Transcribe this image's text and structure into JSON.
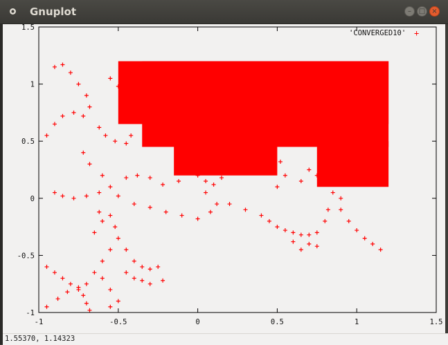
{
  "window": {
    "title": "Gnuplot"
  },
  "colors": {
    "series": "#ff0000",
    "titlebar": "#3c3b37",
    "canvas": "#f2f1f0"
  },
  "status": {
    "coords": "1.55370,  1.14323"
  },
  "chart_data": {
    "type": "scatter",
    "xlim": [
      -1,
      1.5
    ],
    "ylim": [
      -1,
      1.5
    ],
    "x_ticks": [
      "-1",
      "-0.5",
      "0",
      "0.5",
      "1",
      "1.5"
    ],
    "y_ticks": [
      "-1",
      "-0.5",
      "0",
      "0.5",
      "1",
      "1.5"
    ],
    "grid": false,
    "legend": "top-right",
    "series": [
      {
        "name": "'CONVERGED10'",
        "marker": "+",
        "color": "#ff0000",
        "regions": [
          {
            "shape": "rect",
            "x": [
              -0.35,
              1.2
            ],
            "y": [
              0.45,
              1.2
            ]
          },
          {
            "shape": "rect",
            "x": [
              -0.5,
              1.2
            ],
            "y": [
              0.65,
              1.2
            ]
          },
          {
            "shape": "rect",
            "x": [
              -0.15,
              0.5
            ],
            "y": [
              0.2,
              0.7
            ]
          },
          {
            "shape": "rect",
            "x": [
              0.75,
              1.2
            ],
            "y": [
              0.1,
              0.5
            ]
          }
        ],
        "points": [
          [
            -0.95,
            0.55
          ],
          [
            -0.9,
            0.65
          ],
          [
            -0.85,
            0.72
          ],
          [
            -0.78,
            0.75
          ],
          [
            -0.72,
            0.72
          ],
          [
            -0.8,
            1.1
          ],
          [
            -0.75,
            1.0
          ],
          [
            -0.7,
            0.9
          ],
          [
            -0.68,
            0.8
          ],
          [
            -0.85,
            1.17
          ],
          [
            -0.9,
            1.15
          ],
          [
            -0.55,
            1.05
          ],
          [
            -0.5,
            0.98
          ],
          [
            -0.45,
            0.92
          ],
          [
            -0.4,
            1.1
          ],
          [
            -0.35,
            1.12
          ],
          [
            -0.3,
            1.17
          ],
          [
            -0.62,
            0.62
          ],
          [
            -0.58,
            0.55
          ],
          [
            -0.52,
            0.5
          ],
          [
            -0.45,
            0.48
          ],
          [
            -0.42,
            0.55
          ],
          [
            -0.72,
            0.4
          ],
          [
            -0.68,
            0.3
          ],
          [
            -0.6,
            0.2
          ],
          [
            -0.55,
            0.1
          ],
          [
            -0.5,
            0.02
          ],
          [
            -0.9,
            0.05
          ],
          [
            -0.85,
            0.02
          ],
          [
            -0.78,
            0.0
          ],
          [
            -0.7,
            0.02
          ],
          [
            -0.62,
            0.05
          ],
          [
            -0.45,
            0.18
          ],
          [
            -0.38,
            0.2
          ],
          [
            -0.3,
            0.18
          ],
          [
            -0.22,
            0.12
          ],
          [
            -0.12,
            0.15
          ],
          [
            0.0,
            0.2
          ],
          [
            0.05,
            0.15
          ],
          [
            -0.4,
            -0.05
          ],
          [
            -0.3,
            -0.08
          ],
          [
            -0.2,
            -0.12
          ],
          [
            -0.1,
            -0.15
          ],
          [
            0.0,
            -0.18
          ],
          [
            0.08,
            -0.12
          ],
          [
            0.12,
            -0.05
          ],
          [
            0.05,
            0.05
          ],
          [
            0.1,
            0.12
          ],
          [
            0.15,
            0.18
          ],
          [
            0.2,
            -0.05
          ],
          [
            0.3,
            -0.1
          ],
          [
            0.4,
            -0.15
          ],
          [
            0.45,
            -0.2
          ],
          [
            0.5,
            -0.25
          ],
          [
            0.55,
            -0.28
          ],
          [
            0.6,
            -0.3
          ],
          [
            0.65,
            -0.32
          ],
          [
            0.7,
            -0.32
          ],
          [
            0.75,
            -0.3
          ],
          [
            0.8,
            -0.2
          ],
          [
            0.82,
            -0.1
          ],
          [
            0.5,
            0.1
          ],
          [
            0.55,
            0.2
          ],
          [
            0.48,
            0.25
          ],
          [
            0.45,
            0.3
          ],
          [
            0.52,
            0.32
          ],
          [
            0.65,
            0.15
          ],
          [
            0.7,
            0.25
          ],
          [
            0.75,
            0.2
          ],
          [
            0.85,
            0.05
          ],
          [
            0.9,
            0.0
          ],
          [
            0.9,
            -0.1
          ],
          [
            0.95,
            -0.2
          ],
          [
            1.0,
            -0.28
          ],
          [
            1.05,
            -0.35
          ],
          [
            1.1,
            -0.4
          ],
          [
            1.15,
            -0.45
          ],
          [
            0.6,
            -0.38
          ],
          [
            0.65,
            -0.45
          ],
          [
            0.7,
            -0.4
          ],
          [
            0.75,
            -0.42
          ],
          [
            -0.55,
            -0.15
          ],
          [
            -0.52,
            -0.25
          ],
          [
            -0.5,
            -0.35
          ],
          [
            -0.55,
            -0.45
          ],
          [
            -0.6,
            -0.55
          ],
          [
            -0.65,
            -0.65
          ],
          [
            -0.7,
            -0.75
          ],
          [
            -0.72,
            -0.85
          ],
          [
            -0.7,
            -0.92
          ],
          [
            -0.68,
            -0.98
          ],
          [
            -0.6,
            -0.7
          ],
          [
            -0.55,
            -0.8
          ],
          [
            -0.5,
            -0.9
          ],
          [
            -0.55,
            -0.95
          ],
          [
            -0.95,
            -0.6
          ],
          [
            -0.9,
            -0.65
          ],
          [
            -0.85,
            -0.7
          ],
          [
            -0.8,
            -0.75
          ],
          [
            -0.75,
            -0.78
          ],
          [
            -0.95,
            -0.95
          ],
          [
            -0.88,
            -0.88
          ],
          [
            -0.82,
            -0.82
          ],
          [
            -0.75,
            -0.8
          ],
          [
            -0.6,
            -0.2
          ],
          [
            -0.65,
            -0.3
          ],
          [
            -0.62,
            -0.12
          ],
          [
            -0.45,
            -0.45
          ],
          [
            -0.4,
            -0.55
          ],
          [
            -0.35,
            -0.6
          ],
          [
            -0.3,
            -0.62
          ],
          [
            -0.25,
            -0.6
          ],
          [
            -0.45,
            -0.65
          ],
          [
            -0.4,
            -0.7
          ],
          [
            -0.35,
            -0.72
          ],
          [
            -0.3,
            -0.75
          ],
          [
            -0.22,
            -0.72
          ]
        ]
      }
    ]
  }
}
